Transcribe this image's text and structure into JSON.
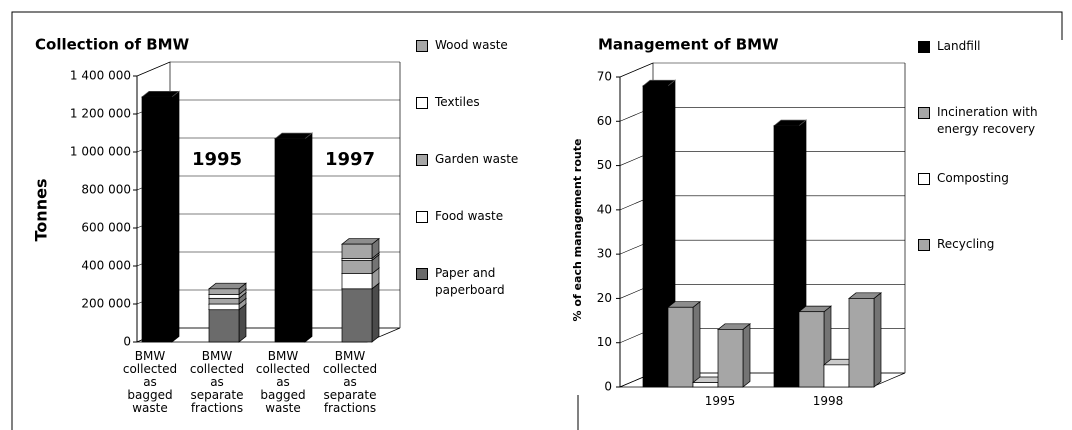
{
  "chart_data": [
    {
      "type": "bar",
      "stacked": true,
      "title": "Collection of BMW",
      "y_label": "Tonnes",
      "categories": [
        "BMW collected as bagged waste",
        "BMW collected as separate fractions",
        "BMW collected as bagged waste",
        "BMW collected as separate fractions"
      ],
      "annotations": [
        "1995",
        "1997"
      ],
      "legend_reversed": true,
      "series": [
        {
          "color": "#000000",
          "values": [
            1290000,
            null,
            1070000,
            null
          ]
        },
        {
          "name": "Paper and paperboard",
          "color": "#6b6b6b",
          "values": [
            null,
            170000,
            null,
            280000
          ]
        },
        {
          "name": "Food waste",
          "color": "#ffffff",
          "values": [
            null,
            30000,
            null,
            80000
          ]
        },
        {
          "name": "Garden waste",
          "color": "#a6a6a6",
          "values": [
            null,
            30000,
            null,
            70000
          ]
        },
        {
          "name": "Textiles",
          "color": "#ffffff",
          "values": [
            null,
            20000,
            null,
            10000
          ]
        },
        {
          "name": "Wood waste",
          "color": "#a6a6a6",
          "values": [
            null,
            30000,
            null,
            75000
          ]
        }
      ],
      "ylim": [
        0,
        1400000
      ],
      "yticks": [
        0,
        {
          "value": 200000,
          "label": "200 000"
        },
        {
          "value": 400000,
          "label": "400 000"
        },
        {
          "value": 600000,
          "label": "600 000"
        },
        {
          "value": 800000,
          "label": "800 000"
        },
        {
          "value": 1000000,
          "label": "1 000 000"
        },
        {
          "value": 1200000,
          "label": "1 200 000"
        },
        {
          "value": 1400000,
          "label": "1 400 000"
        }
      ],
      "grid": true
    },
    {
      "type": "bar",
      "stacked": false,
      "title": "Management of BMW",
      "y_label": "% of each management route",
      "categories": [
        "1995",
        "1998"
      ],
      "legend_reversed": false,
      "series": [
        {
          "name": "Landfill",
          "color": "#000000",
          "values": [
            68,
            59
          ]
        },
        {
          "name": "Incineration with energy recovery",
          "color": "#a6a6a6",
          "values": [
            18,
            17
          ]
        },
        {
          "name": "Composting",
          "color": "#ffffff",
          "values": [
            1,
            5
          ]
        },
        {
          "name": "Recycling",
          "color": "#a6a6a6",
          "values": [
            13,
            20
          ]
        }
      ],
      "ylim": [
        0,
        70
      ],
      "yticks": [
        0,
        10,
        20,
        30,
        40,
        50,
        60,
        70
      ],
      "grid": true
    }
  ]
}
